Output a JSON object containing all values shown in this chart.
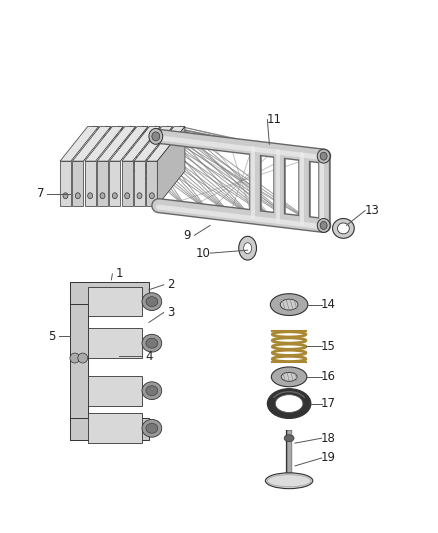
{
  "background_color": "#ffffff",
  "figure_width": 4.38,
  "figure_height": 5.33,
  "dpi": 100,
  "line_color": "#333333",
  "label_fontsize": 8.5,
  "label_color": "#222222",
  "spring_color": "#888855"
}
